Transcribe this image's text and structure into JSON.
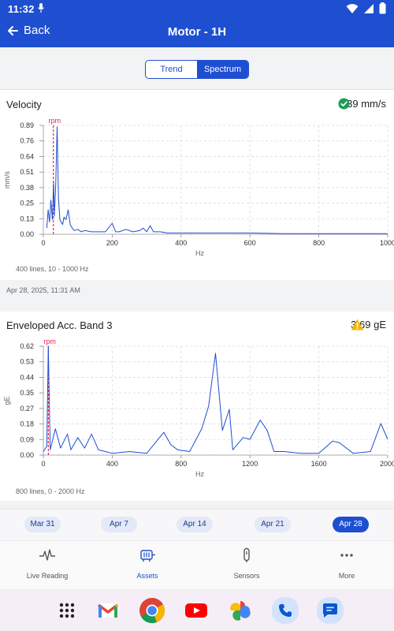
{
  "status": {
    "time": "11:32"
  },
  "appbar": {
    "back_label": "Back",
    "title": "Motor - 1H"
  },
  "toggle": {
    "trend": "Trend",
    "spectrum": "Spectrum",
    "selected": "Spectrum"
  },
  "velocity": {
    "title": "Velocity",
    "value": "1.39 mm/s",
    "footnote": "400 lines, 10 - 1000 Hz",
    "timestamp": "Apr 28, 2025, 11:31 AM",
    "status_color": "#1f9d55"
  },
  "enveloped": {
    "title": "Enveloped Acc. Band 3",
    "value": "3.69 gE",
    "footnote": "800 lines, 0 - 2000 Hz",
    "status_color": "#f2b705"
  },
  "chart_data": [
    {
      "type": "line",
      "ylabel": "mm/s",
      "xlabel": "Hz",
      "xlim": [
        0,
        1000
      ],
      "ylim": [
        0,
        0.89
      ],
      "yticks": [
        "0.00",
        "0.13",
        "0.25",
        "0.38",
        "0.51",
        "0.64",
        "0.76",
        "0.89"
      ],
      "xticks": [
        "0",
        "200",
        "400",
        "600",
        "800",
        "1000"
      ],
      "marker": {
        "label": "rpm",
        "x": 29
      },
      "x": [
        10,
        14,
        18,
        22,
        26,
        30,
        32,
        36,
        40,
        44,
        48,
        52,
        56,
        60,
        66,
        72,
        78,
        84,
        90,
        100,
        110,
        120,
        140,
        160,
        180,
        200,
        210,
        220,
        240,
        260,
        280,
        290,
        300,
        310,
        320,
        340,
        360,
        380,
        400,
        450,
        500,
        600,
        700,
        800,
        900,
        1000
      ],
      "y": [
        0.05,
        0.2,
        0.1,
        0.28,
        0.12,
        0.42,
        0.15,
        0.4,
        0.88,
        0.3,
        0.12,
        0.1,
        0.08,
        0.14,
        0.12,
        0.2,
        0.08,
        0.05,
        0.03,
        0.04,
        0.02,
        0.03,
        0.02,
        0.02,
        0.02,
        0.09,
        0.02,
        0.02,
        0.04,
        0.02,
        0.03,
        0.05,
        0.02,
        0.07,
        0.02,
        0.02,
        0.01,
        0.01,
        0.01,
        0.01,
        0.01,
        0.01,
        0.005,
        0.005,
        0.005,
        0.005
      ]
    },
    {
      "type": "line",
      "ylabel": "gE",
      "xlabel": "Hz",
      "xlim": [
        0,
        2000
      ],
      "ylim": [
        0,
        0.62
      ],
      "yticks": [
        "0.00",
        "0.09",
        "0.18",
        "0.27",
        "0.35",
        "0.44",
        "0.53",
        "0.62"
      ],
      "xticks": [
        "0",
        "400",
        "800",
        "1200",
        "1600",
        "2000"
      ],
      "marker": {
        "label": "rpm",
        "x": 29
      },
      "x": [
        0,
        20,
        29,
        40,
        70,
        100,
        140,
        160,
        200,
        240,
        280,
        320,
        360,
        400,
        500,
        600,
        650,
        700,
        740,
        780,
        850,
        920,
        960,
        1000,
        1040,
        1080,
        1100,
        1160,
        1200,
        1260,
        1300,
        1340,
        1400,
        1500,
        1600,
        1680,
        1720,
        1800,
        1900,
        1960,
        2000
      ],
      "y": [
        0.02,
        0.05,
        0.62,
        0.03,
        0.15,
        0.04,
        0.12,
        0.03,
        0.1,
        0.04,
        0.12,
        0.03,
        0.02,
        0.01,
        0.02,
        0.01,
        0.07,
        0.13,
        0.06,
        0.03,
        0.02,
        0.15,
        0.28,
        0.58,
        0.14,
        0.26,
        0.03,
        0.1,
        0.09,
        0.2,
        0.14,
        0.02,
        0.02,
        0.01,
        0.01,
        0.08,
        0.07,
        0.01,
        0.02,
        0.18,
        0.09
      ]
    }
  ],
  "dates": [
    "Mar 31",
    "Apr 7",
    "Apr 14",
    "Apr 21",
    "Apr 28"
  ],
  "selected_date": "Apr 28",
  "nav": [
    {
      "label": "Live Reading",
      "icon": "pulse-icon"
    },
    {
      "label": "Assets",
      "icon": "motor-icon"
    },
    {
      "label": "Sensors",
      "icon": "sensor-icon"
    },
    {
      "label": "More",
      "icon": "more-icon"
    }
  ],
  "dock": [
    "apps-icon",
    "gmail-icon",
    "chrome-icon",
    "youtube-icon",
    "photos-icon",
    "phone-icon",
    "messages-icon"
  ]
}
